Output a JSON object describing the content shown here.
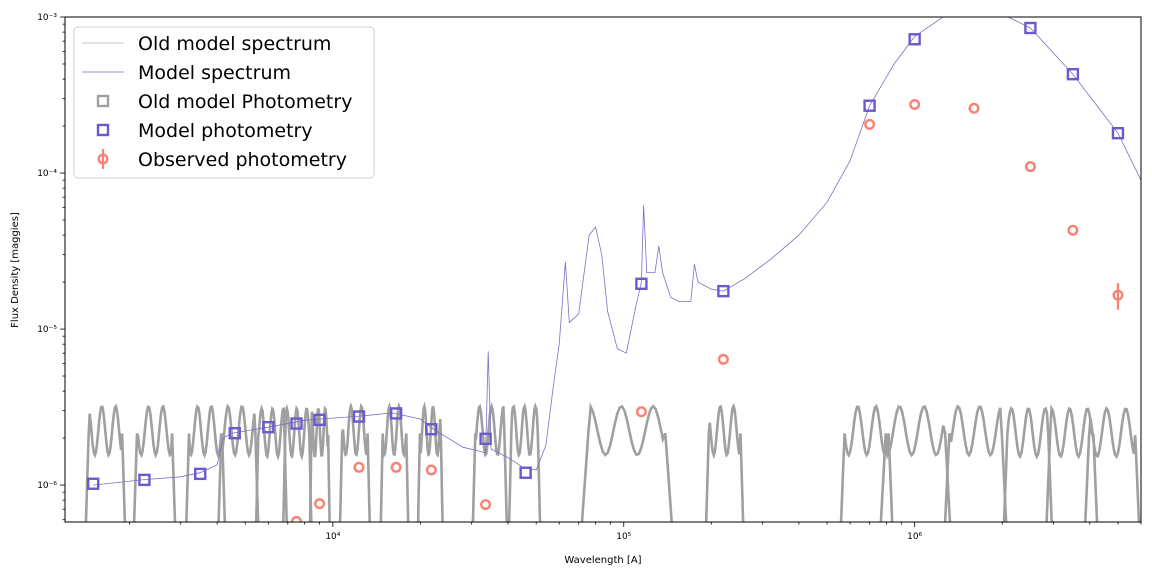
{
  "chart_data": {
    "type": "scatter",
    "title": "",
    "xlabel": "Wavelength [A]",
    "ylabel": "Flux Density [maggies]",
    "xscale": "log",
    "yscale": "log",
    "xlim": [
      1200,
      6000000
    ],
    "ylim": [
      5.8e-07,
      0.001
    ],
    "x_ticks": [
      10000,
      100000,
      1000000
    ],
    "x_tick_labels": [
      "10⁴",
      "10⁵",
      "10⁶"
    ],
    "y_ticks": [
      1e-06,
      1e-05,
      0.0001,
      0.001
    ],
    "y_tick_labels": [
      "10⁻⁶",
      "10⁻⁵",
      "10⁻⁴",
      "10⁻³"
    ],
    "grid": false,
    "legend": {
      "position": "top-left",
      "entries": [
        "Old model spectrum",
        "Model spectrum",
        "Old model Photometry",
        "Model photometry",
        "Observed photometry"
      ]
    },
    "colors": {
      "old_model_spectrum": "#c8c8c8",
      "model_spectrum": "#7b6fc6",
      "model_photometry": "#6a5acd",
      "observed_photometry": "#fa8072",
      "filter_curves": "#a0a0a0"
    },
    "series": [
      {
        "name": "Model spectrum",
        "kind": "line",
        "points": [
          [
            1500,
            1e-06
          ],
          [
            2200,
            1.08e-06
          ],
          [
            3000,
            1.13e-06
          ],
          [
            3500,
            1.2e-06
          ],
          [
            4000,
            1.35e-06
          ],
          [
            4200,
            2e-06
          ],
          [
            4500,
            2.15e-06
          ],
          [
            6000,
            2.35e-06
          ],
          [
            8000,
            2.6e-06
          ],
          [
            9000,
            2.65e-06
          ],
          [
            12000,
            2.75e-06
          ],
          [
            16000,
            2.9e-06
          ],
          [
            20000,
            2.65e-06
          ],
          [
            22000,
            2.3e-06
          ],
          [
            28000,
            1.75e-06
          ],
          [
            32000,
            1.65e-06
          ],
          [
            33500,
            1.6e-06
          ],
          [
            34200,
            7.2e-06
          ],
          [
            35000,
            1.7e-06
          ],
          [
            40000,
            1.5e-06
          ],
          [
            45000,
            1.3e-06
          ],
          [
            50000,
            1.25e-06
          ],
          [
            54000,
            1.8e-06
          ],
          [
            57000,
            4e-06
          ],
          [
            60000,
            8e-06
          ],
          [
            63000,
            2.7e-05
          ],
          [
            65000,
            1.1e-05
          ],
          [
            70000,
            1.25e-05
          ],
          [
            76000,
            4e-05
          ],
          [
            80000,
            4.5e-05
          ],
          [
            84000,
            3e-05
          ],
          [
            88000,
            1.3e-05
          ],
          [
            95000,
            7.5e-06
          ],
          [
            102000,
            7e-06
          ],
          [
            110000,
            1.4e-05
          ],
          [
            115000,
            2e-05
          ],
          [
            117000,
            6.2e-05
          ],
          [
            120000,
            2.3e-05
          ],
          [
            128000,
            2.3e-05
          ],
          [
            132000,
            3.4e-05
          ],
          [
            136000,
            2.3e-05
          ],
          [
            145000,
            1.6e-05
          ],
          [
            155000,
            1.5e-05
          ],
          [
            170000,
            1.5e-05
          ],
          [
            175000,
            2.6e-05
          ],
          [
            180000,
            2e-05
          ],
          [
            200000,
            1.8e-05
          ],
          [
            220000,
            1.75e-05
          ],
          [
            260000,
            2.1e-05
          ],
          [
            320000,
            2.8e-05
          ],
          [
            400000,
            4e-05
          ],
          [
            500000,
            6.5e-05
          ],
          [
            600000,
            0.00012
          ],
          [
            700000,
            0.00027
          ],
          [
            850000,
            0.0005
          ],
          [
            1000000,
            0.00075
          ],
          [
            1300000,
            0.00105
          ],
          [
            1800000,
            0.00115
          ],
          [
            2500000,
            0.00085
          ],
          [
            3500000,
            0.00043
          ],
          [
            5000000,
            0.00018
          ],
          [
            6000000,
            9e-05
          ]
        ]
      },
      {
        "name": "Model photometry",
        "kind": "markers",
        "marker": "square",
        "points": [
          [
            1500,
            1.02e-06
          ],
          [
            2250,
            1.08e-06
          ],
          [
            3500,
            1.18e-06
          ],
          [
            4600,
            2.15e-06
          ],
          [
            6000,
            2.35e-06
          ],
          [
            7500,
            2.48e-06
          ],
          [
            9000,
            2.62e-06
          ],
          [
            12300,
            2.75e-06
          ],
          [
            16500,
            2.88e-06
          ],
          [
            21800,
            2.28e-06
          ],
          [
            33500,
            1.98e-06
          ],
          [
            46000,
            1.2e-06
          ],
          [
            115000,
            1.95e-05
          ],
          [
            220000,
            1.75e-05
          ],
          [
            700000,
            0.00027
          ],
          [
            1000000,
            0.00072
          ],
          [
            2500000,
            0.00085
          ],
          [
            3500000,
            0.00043
          ],
          [
            5000000,
            0.00018
          ]
        ]
      },
      {
        "name": "Observed photometry",
        "kind": "markers",
        "marker": "circle",
        "points": [
          [
            7500,
            5.85e-07
          ],
          [
            9000,
            7.6e-07
          ],
          [
            12300,
            1.3e-06
          ],
          [
            16500,
            1.3e-06
          ],
          [
            21800,
            1.25e-06
          ],
          [
            33500,
            7.5e-07
          ],
          [
            115000,
            2.95e-06
          ],
          [
            220000,
            6.4e-06
          ],
          [
            700000,
            0.000205
          ],
          [
            1000000,
            0.000275
          ],
          [
            1600000,
            0.00026
          ],
          [
            2500000,
            0.00011
          ],
          [
            3500000,
            4.3e-05
          ],
          [
            5000000,
            1.65e-05
          ]
        ],
        "yerr": [
          0,
          0,
          0,
          0,
          0,
          0,
          0,
          0,
          0,
          0,
          0,
          0,
          0,
          3.2e-06
        ]
      }
    ],
    "filter_curves": [
      {
        "peak": 3.2e-06,
        "range": [
          1400,
          1950
        ]
      },
      {
        "peak": 3.2e-06,
        "range": [
          2050,
          2900
        ]
      },
      {
        "peak": 3.2e-06,
        "range": [
          3100,
          4300
        ]
      },
      {
        "peak": 3.2e-06,
        "range": [
          4000,
          5600
        ]
      },
      {
        "peak": 3.1e-06,
        "range": [
          5400,
          7000
        ]
      },
      {
        "peak": 3.1e-06,
        "range": [
          6700,
          8500
        ]
      },
      {
        "peak": 3.1e-06,
        "range": [
          8300,
          9800
        ]
      },
      {
        "peak": 3.2e-06,
        "range": [
          10500,
          13500
        ]
      },
      {
        "peak": 3.2e-06,
        "range": [
          14500,
          18300
        ]
      },
      {
        "peak": 3.2e-06,
        "range": [
          19500,
          24000
        ]
      },
      {
        "peak": 3.2e-06,
        "range": [
          30000,
          40000
        ]
      },
      {
        "peak": 3.2e-06,
        "range": [
          40000,
          52000
        ]
      },
      {
        "peak": 3.2e-06,
        "range": [
          70000,
          150000
        ]
      },
      {
        "peak": 3.2e-06,
        "range": [
          190000,
          260000
        ]
      },
      {
        "peak": 3.2e-06,
        "range": [
          550000,
          850000
        ]
      },
      {
        "peak": 3.2e-06,
        "range": [
          750000,
          1350000
        ]
      },
      {
        "peak": 3.2e-06,
        "range": [
          1250000,
          2100000
        ]
      },
      {
        "peak": 3.1e-06,
        "range": [
          2000000,
          3000000
        ]
      },
      {
        "peak": 3.1e-06,
        "range": [
          2800000,
          4300000
        ]
      },
      {
        "peak": 3.1e-06,
        "range": [
          3800000,
          6000000
        ]
      }
    ]
  }
}
